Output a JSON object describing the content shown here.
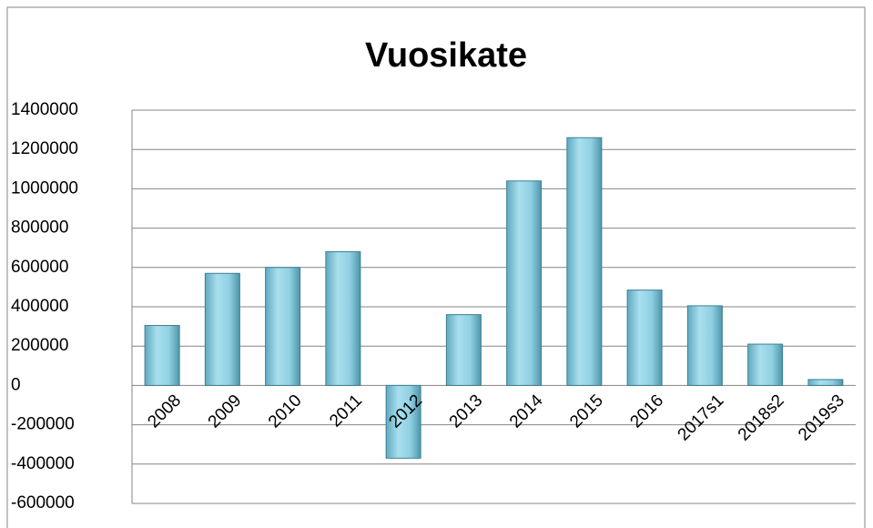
{
  "chart_data": {
    "type": "bar",
    "title": "Vuosikate",
    "categories": [
      "2008",
      "2009",
      "2010",
      "2011",
      "2012",
      "2013",
      "2014",
      "2015",
      "2016",
      "2017s1",
      "2018s2",
      "2019s3"
    ],
    "values": [
      305000,
      570000,
      600000,
      680000,
      -370000,
      360000,
      1040000,
      1260000,
      485000,
      405000,
      210000,
      30000
    ],
    "color": "#8fd0e2",
    "ylim": [
      -600000,
      1400000
    ],
    "yticks": [
      -600000,
      -400000,
      -200000,
      0,
      200000,
      400000,
      600000,
      800000,
      1000000,
      1200000,
      1400000
    ],
    "grid": true
  }
}
